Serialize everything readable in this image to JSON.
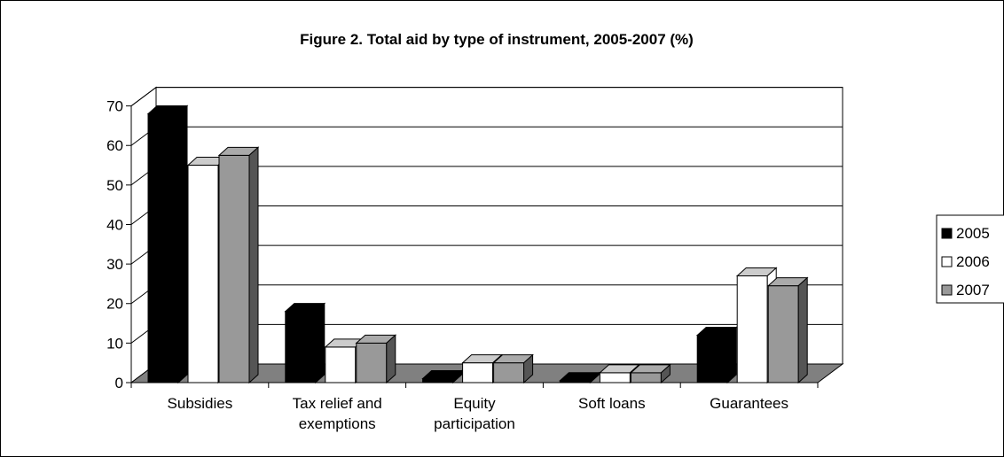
{
  "chart_data": {
    "type": "bar",
    "title": "Figure 2. Total aid by type of instrument, 2005-2007 (%)",
    "xlabel": "",
    "ylabel": "",
    "ylim": [
      0,
      70
    ],
    "yticks": [
      "0",
      "10",
      "20",
      "30",
      "40",
      "50",
      "60",
      "70"
    ],
    "categories": [
      [
        "Subsidies"
      ],
      [
        "Tax relief and",
        "exemptions"
      ],
      [
        "Equity",
        "participation"
      ],
      [
        "Soft loans"
      ],
      [
        "Guarantees"
      ]
    ],
    "series": [
      {
        "name": "2005",
        "color": "#000000",
        "values": [
          68,
          18,
          1,
          0.5,
          12
        ]
      },
      {
        "name": "2006",
        "color": "#ffffff",
        "values": [
          55,
          9,
          5,
          2.5,
          27
        ]
      },
      {
        "name": "2007",
        "color": "#999999",
        "values": [
          57.5,
          10,
          5,
          2.5,
          24.5
        ]
      }
    ],
    "grid": true,
    "legend_position": "right",
    "style": "3d-clustered-column"
  }
}
